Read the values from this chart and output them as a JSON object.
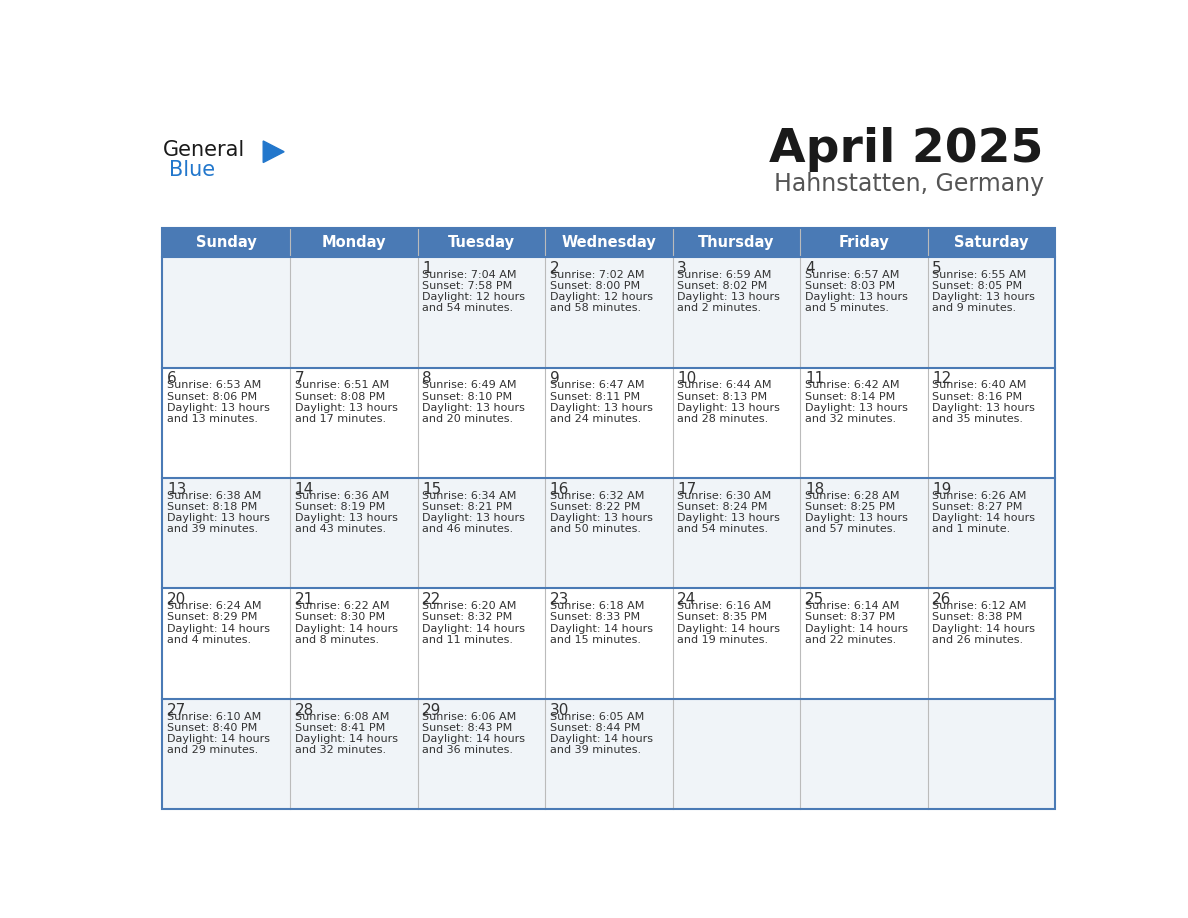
{
  "title": "April 2025",
  "subtitle": "Hahnstatten, Germany",
  "header_color": "#4a7ab5",
  "header_text_color": "#ffffff",
  "cell_bg_even": "#f0f4f8",
  "cell_bg_odd": "#ffffff",
  "divider_color": "#4a7ab5",
  "grid_color": "#bbbbbb",
  "text_color": "#333333",
  "days_of_week": [
    "Sunday",
    "Monday",
    "Tuesday",
    "Wednesday",
    "Thursday",
    "Friday",
    "Saturday"
  ],
  "calendar_data": [
    [
      {
        "day": "",
        "lines": []
      },
      {
        "day": "",
        "lines": []
      },
      {
        "day": "1",
        "lines": [
          "Sunrise: 7:04 AM",
          "Sunset: 7:58 PM",
          "Daylight: 12 hours",
          "and 54 minutes."
        ]
      },
      {
        "day": "2",
        "lines": [
          "Sunrise: 7:02 AM",
          "Sunset: 8:00 PM",
          "Daylight: 12 hours",
          "and 58 minutes."
        ]
      },
      {
        "day": "3",
        "lines": [
          "Sunrise: 6:59 AM",
          "Sunset: 8:02 PM",
          "Daylight: 13 hours",
          "and 2 minutes."
        ]
      },
      {
        "day": "4",
        "lines": [
          "Sunrise: 6:57 AM",
          "Sunset: 8:03 PM",
          "Daylight: 13 hours",
          "and 5 minutes."
        ]
      },
      {
        "day": "5",
        "lines": [
          "Sunrise: 6:55 AM",
          "Sunset: 8:05 PM",
          "Daylight: 13 hours",
          "and 9 minutes."
        ]
      }
    ],
    [
      {
        "day": "6",
        "lines": [
          "Sunrise: 6:53 AM",
          "Sunset: 8:06 PM",
          "Daylight: 13 hours",
          "and 13 minutes."
        ]
      },
      {
        "day": "7",
        "lines": [
          "Sunrise: 6:51 AM",
          "Sunset: 8:08 PM",
          "Daylight: 13 hours",
          "and 17 minutes."
        ]
      },
      {
        "day": "8",
        "lines": [
          "Sunrise: 6:49 AM",
          "Sunset: 8:10 PM",
          "Daylight: 13 hours",
          "and 20 minutes."
        ]
      },
      {
        "day": "9",
        "lines": [
          "Sunrise: 6:47 AM",
          "Sunset: 8:11 PM",
          "Daylight: 13 hours",
          "and 24 minutes."
        ]
      },
      {
        "day": "10",
        "lines": [
          "Sunrise: 6:44 AM",
          "Sunset: 8:13 PM",
          "Daylight: 13 hours",
          "and 28 minutes."
        ]
      },
      {
        "day": "11",
        "lines": [
          "Sunrise: 6:42 AM",
          "Sunset: 8:14 PM",
          "Daylight: 13 hours",
          "and 32 minutes."
        ]
      },
      {
        "day": "12",
        "lines": [
          "Sunrise: 6:40 AM",
          "Sunset: 8:16 PM",
          "Daylight: 13 hours",
          "and 35 minutes."
        ]
      }
    ],
    [
      {
        "day": "13",
        "lines": [
          "Sunrise: 6:38 AM",
          "Sunset: 8:18 PM",
          "Daylight: 13 hours",
          "and 39 minutes."
        ]
      },
      {
        "day": "14",
        "lines": [
          "Sunrise: 6:36 AM",
          "Sunset: 8:19 PM",
          "Daylight: 13 hours",
          "and 43 minutes."
        ]
      },
      {
        "day": "15",
        "lines": [
          "Sunrise: 6:34 AM",
          "Sunset: 8:21 PM",
          "Daylight: 13 hours",
          "and 46 minutes."
        ]
      },
      {
        "day": "16",
        "lines": [
          "Sunrise: 6:32 AM",
          "Sunset: 8:22 PM",
          "Daylight: 13 hours",
          "and 50 minutes."
        ]
      },
      {
        "day": "17",
        "lines": [
          "Sunrise: 6:30 AM",
          "Sunset: 8:24 PM",
          "Daylight: 13 hours",
          "and 54 minutes."
        ]
      },
      {
        "day": "18",
        "lines": [
          "Sunrise: 6:28 AM",
          "Sunset: 8:25 PM",
          "Daylight: 13 hours",
          "and 57 minutes."
        ]
      },
      {
        "day": "19",
        "lines": [
          "Sunrise: 6:26 AM",
          "Sunset: 8:27 PM",
          "Daylight: 14 hours",
          "and 1 minute."
        ]
      }
    ],
    [
      {
        "day": "20",
        "lines": [
          "Sunrise: 6:24 AM",
          "Sunset: 8:29 PM",
          "Daylight: 14 hours",
          "and 4 minutes."
        ]
      },
      {
        "day": "21",
        "lines": [
          "Sunrise: 6:22 AM",
          "Sunset: 8:30 PM",
          "Daylight: 14 hours",
          "and 8 minutes."
        ]
      },
      {
        "day": "22",
        "lines": [
          "Sunrise: 6:20 AM",
          "Sunset: 8:32 PM",
          "Daylight: 14 hours",
          "and 11 minutes."
        ]
      },
      {
        "day": "23",
        "lines": [
          "Sunrise: 6:18 AM",
          "Sunset: 8:33 PM",
          "Daylight: 14 hours",
          "and 15 minutes."
        ]
      },
      {
        "day": "24",
        "lines": [
          "Sunrise: 6:16 AM",
          "Sunset: 8:35 PM",
          "Daylight: 14 hours",
          "and 19 minutes."
        ]
      },
      {
        "day": "25",
        "lines": [
          "Sunrise: 6:14 AM",
          "Sunset: 8:37 PM",
          "Daylight: 14 hours",
          "and 22 minutes."
        ]
      },
      {
        "day": "26",
        "lines": [
          "Sunrise: 6:12 AM",
          "Sunset: 8:38 PM",
          "Daylight: 14 hours",
          "and 26 minutes."
        ]
      }
    ],
    [
      {
        "day": "27",
        "lines": [
          "Sunrise: 6:10 AM",
          "Sunset: 8:40 PM",
          "Daylight: 14 hours",
          "and 29 minutes."
        ]
      },
      {
        "day": "28",
        "lines": [
          "Sunrise: 6:08 AM",
          "Sunset: 8:41 PM",
          "Daylight: 14 hours",
          "and 32 minutes."
        ]
      },
      {
        "day": "29",
        "lines": [
          "Sunrise: 6:06 AM",
          "Sunset: 8:43 PM",
          "Daylight: 14 hours",
          "and 36 minutes."
        ]
      },
      {
        "day": "30",
        "lines": [
          "Sunrise: 6:05 AM",
          "Sunset: 8:44 PM",
          "Daylight: 14 hours",
          "and 39 minutes."
        ]
      },
      {
        "day": "",
        "lines": []
      },
      {
        "day": "",
        "lines": []
      },
      {
        "day": "",
        "lines": []
      }
    ]
  ],
  "logo_color_general": "#1a1a1a",
  "logo_color_blue": "#2277cc",
  "logo_triangle_color": "#2277cc"
}
